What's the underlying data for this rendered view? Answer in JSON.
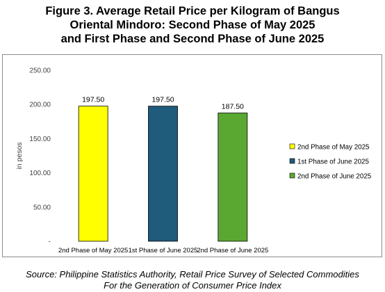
{
  "title_lines": [
    "Figure 3. Average Retail Price per Kilogram of Bangus",
    "Oriental Mindoro: Second Phase of May 2025",
    "and First Phase and Second Phase of June 2025"
  ],
  "source_lines": [
    "Source: Philippine Statistics Authority, Retail Price Survey of Selected Commodities",
    "For the Generation of Consumer Price Index"
  ],
  "chart_data": {
    "type": "bar",
    "title": "Figure 3. Average Retail Price per Kilogram of Bangus Oriental Mindoro: Second Phase of May 2025 and First Phase and Second Phase of June 2025",
    "ylabel": "in pesos",
    "xlabel": "",
    "ylim": [
      0,
      250
    ],
    "y_ticks": [
      "-",
      "50.00",
      "100.00",
      "150.00",
      "200.00",
      "250.00"
    ],
    "categories": [
      "2nd Phase of May 2025",
      "1st Phase of June 2025",
      "2nd Phase of June 2025"
    ],
    "values": [
      197.5,
      197.5,
      187.5
    ],
    "data_labels": [
      "197.50",
      "197.50",
      "187.50"
    ],
    "colors": [
      "#ffff00",
      "#1f5b7a",
      "#5aa832"
    ],
    "legend": {
      "placement": "right",
      "entries": [
        "2nd Phase of May 2025",
        "1st Phase of June 2025",
        "2nd Phase of June 2025"
      ]
    },
    "grid": false
  }
}
